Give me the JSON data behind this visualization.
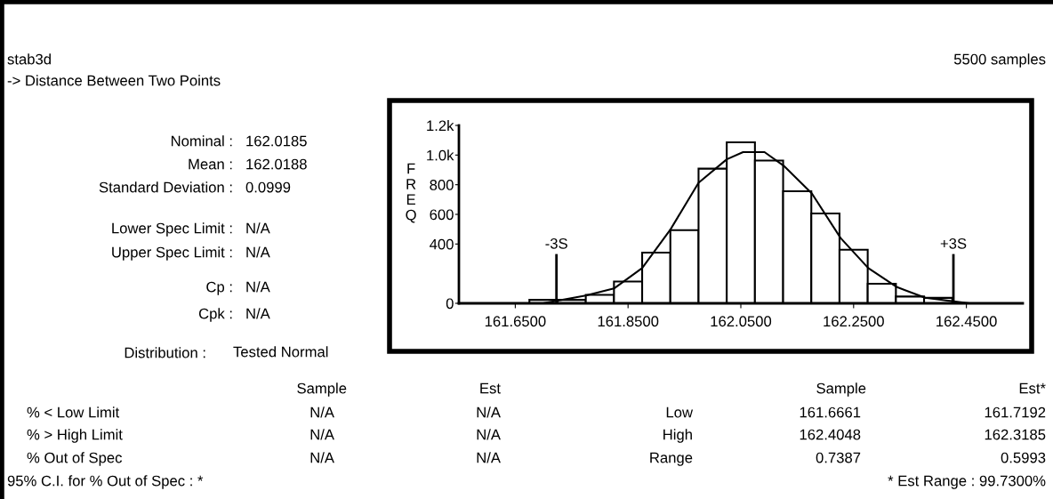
{
  "chart_data": {
    "type": "histogram",
    "ylabel": "FREQ",
    "bins": [
      161.675,
      161.725,
      161.775,
      161.825,
      161.875,
      161.925,
      161.975,
      162.025,
      162.075,
      162.125,
      162.175,
      162.225,
      162.275,
      162.325,
      162.375,
      162.425
    ],
    "values": [
      23,
      23,
      57,
      147,
      342,
      494,
      908,
      1086,
      963,
      756,
      606,
      362,
      132,
      46,
      37
    ],
    "color": "#ffffff",
    "series": [
      {
        "type": "line",
        "color": "#000000",
        "x": [
          161.699,
          161.775,
          161.825,
          161.875,
          161.925,
          161.975,
          162.025,
          162.054,
          162.092,
          162.126,
          162.176,
          162.227,
          162.276,
          162.327,
          162.377,
          162.454
        ],
        "values": [
          0,
          52,
          100,
          238,
          497,
          813,
          971,
          1020,
          1020,
          928,
          741,
          440,
          238,
          109,
          37,
          0
        ]
      }
    ],
    "xlim": [
      161.55,
      162.55
    ],
    "xticks": [
      {
        "value": 161.65,
        "label": "161.6500"
      },
      {
        "value": 161.85,
        "label": "161.8500"
      },
      {
        "value": 162.05,
        "label": "162.0500"
      },
      {
        "value": 162.25,
        "label": "162.2500"
      },
      {
        "value": 162.45,
        "label": "162.4500"
      }
    ],
    "ylim": [
      0,
      1200
    ],
    "yticks": [
      0,
      400,
      600,
      800,
      {
        "value": 1000,
        "label": "1.0k"
      },
      {
        "value": 1200,
        "label": "1.2k"
      }
    ],
    "ref_lines": [
      {
        "axis": "x",
        "value": 161.723,
        "label": "-3S",
        "color": "#000000"
      },
      {
        "axis": "x",
        "value": 162.427,
        "label": "+3S",
        "color": "#000000"
      }
    ],
    "grid": false,
    "legend": false,
    "annotations": [
      "stab3d",
      "5500 samples",
      "-> Distance Between Two Points",
      "Nominal :",
      "162.0185",
      "Mean :",
      "162.0188",
      "Standard Deviation :",
      "0.0999",
      "Lower Spec Limit :",
      "N/A",
      "Upper Spec Limit :",
      "N/A",
      "Cp :",
      "N/A",
      "Cpk :",
      "N/A",
      "Distribution :",
      "Tested Normal",
      "Sample",
      "Est",
      "Sample",
      "Est*",
      "% < Low Limit",
      "N/A",
      "N/A",
      "Low",
      "161.6661",
      "161.7192",
      "% > High Limit",
      "N/A",
      "N/A",
      "High",
      "162.4048",
      "162.3185",
      "% Out of Spec",
      "N/A",
      "N/A",
      "Range",
      "0.7387",
      "0.5993",
      "95% C.I. for % Out of Spec : *",
      "* Est Range : 99.7300%"
    ]
  }
}
